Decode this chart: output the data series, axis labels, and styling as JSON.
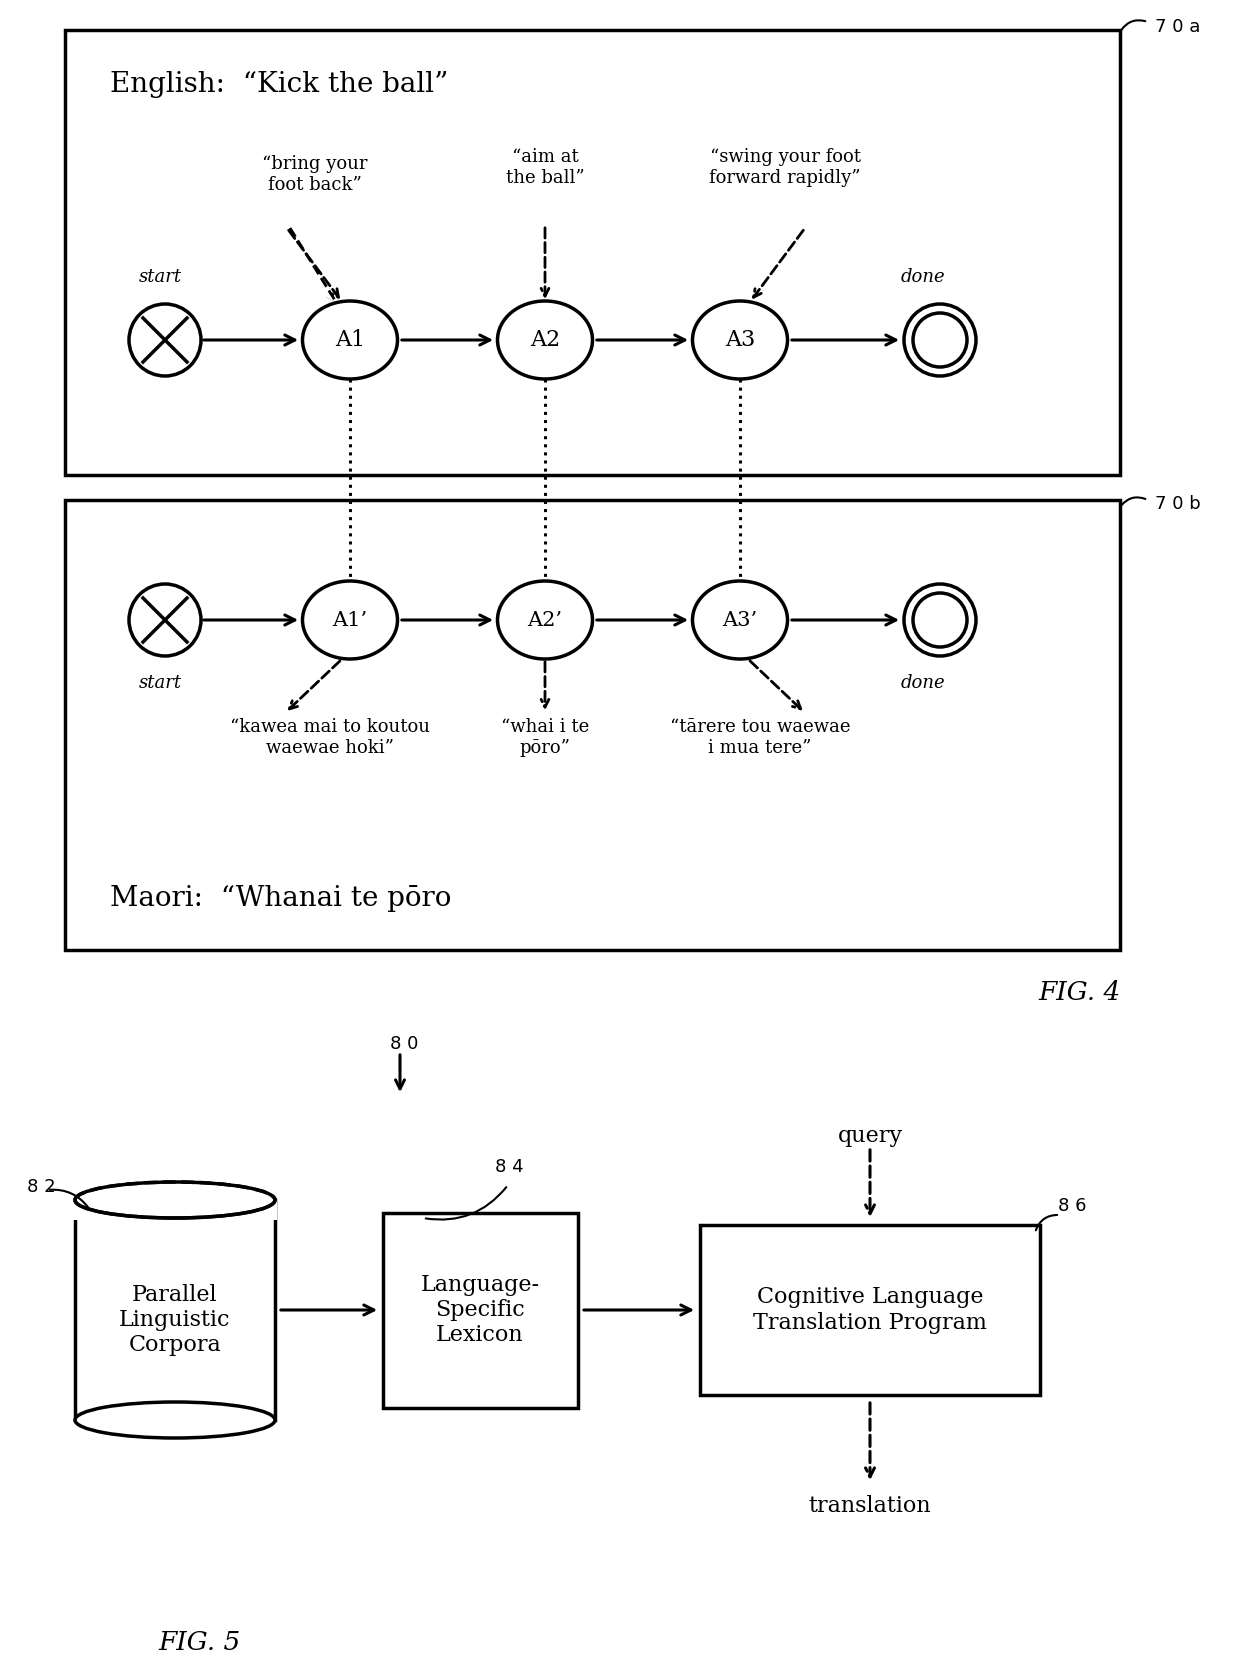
{
  "english_title": "English:  “Kick the ball”",
  "maori_title": "Maori:  “Whanai te pōro",
  "en_actions": [
    "A1",
    "A2",
    "A3"
  ],
  "ma_actions": [
    "A1’",
    "A2’",
    "A3’"
  ],
  "en_label1": "“bring your\nfoot back”",
  "en_label2": "“aim at\nthe ball”",
  "en_label3": "“swing your foot\nforward rapidly”",
  "ma_label1": "“kawea mai to koutou\nwaewae hoki”",
  "ma_label2": "“whai i te\npōro”",
  "ma_label3": "“tārere tou waewae\ni mua tere”",
  "label_70a": "7 0 a",
  "label_70b": "7 0 b",
  "label_80": "8 0",
  "label_82": "8 2",
  "label_84": "8 4",
  "label_86": "8 6",
  "fig4_caption": "FIG. 4",
  "fig5_caption": "FIG. 5",
  "corpus_label": "Parallel\nLinguistic\nCorpora",
  "lexicon_label": "Language-\nSpecific\nLexicon",
  "program_label": "Cognitive Language\nTranslation Program",
  "query_label": "query",
  "translation_label": "translation",
  "bg_color": "#ffffff",
  "line_color": "#000000"
}
